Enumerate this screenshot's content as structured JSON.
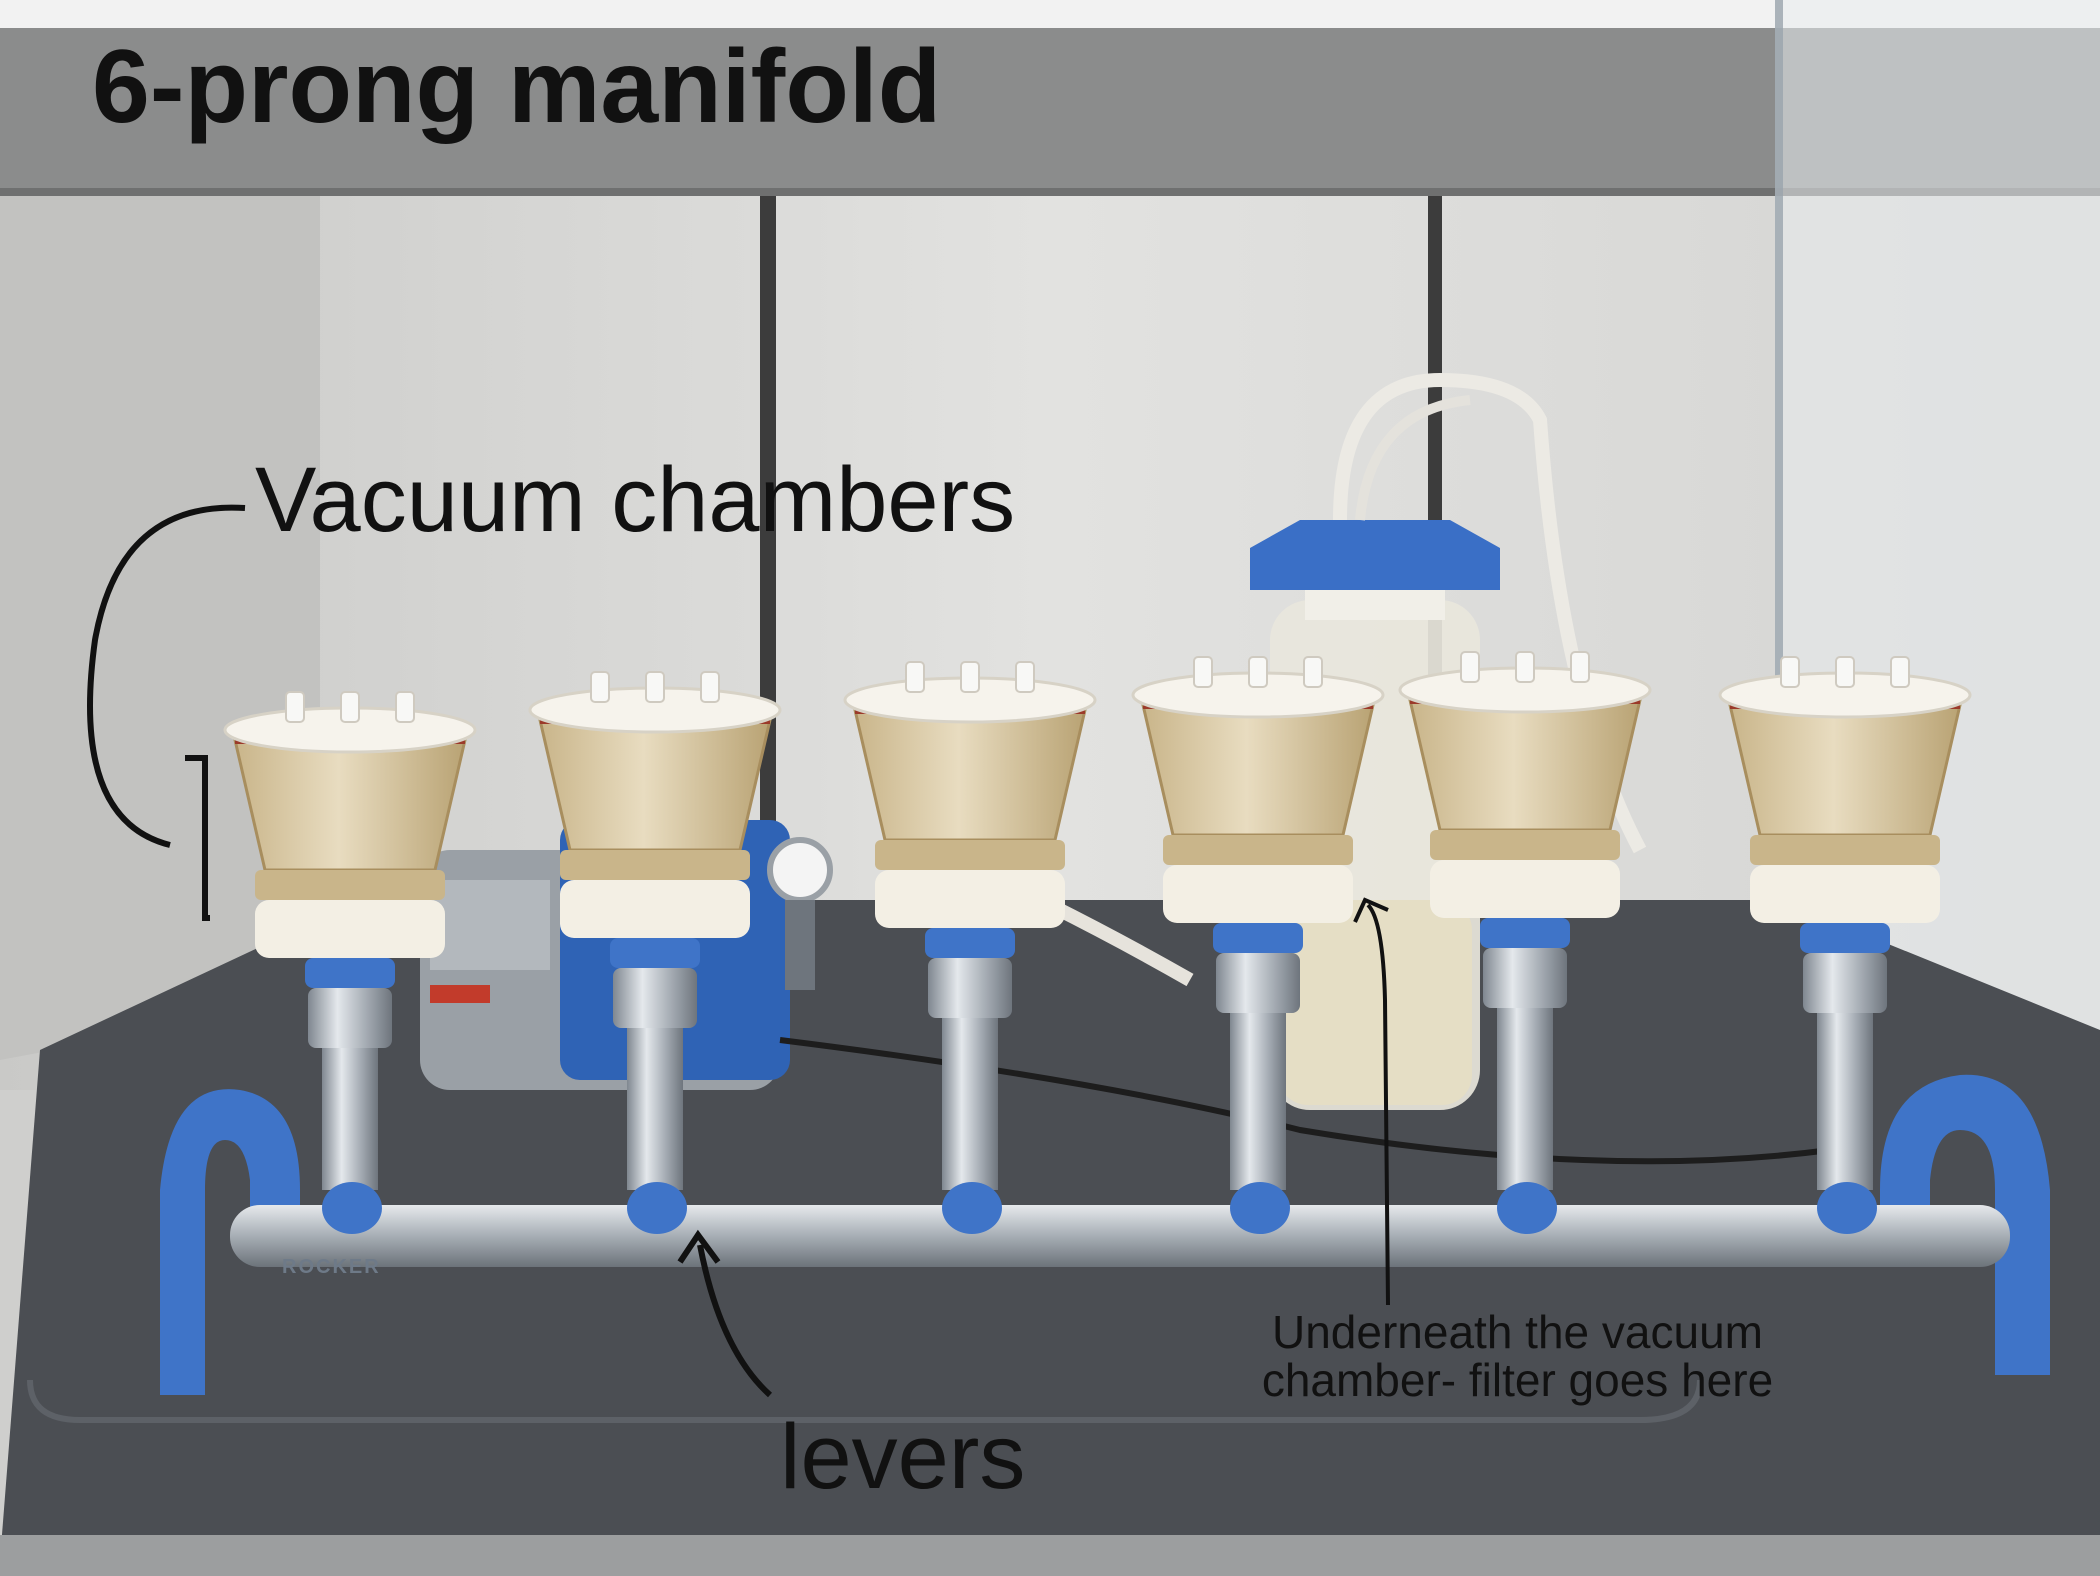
{
  "annotations": {
    "title": "6-prong manifold",
    "vacuum_chambers": "Vacuum chambers",
    "levers": "levers",
    "underneath": "Underneath the vacuum chamber- filter goes here"
  },
  "brand_text": "ROCKER",
  "colors": {
    "manifold_blue": "#3f74c8",
    "chamber_amber": "#d6c49a",
    "lid_white": "#f4f1ea",
    "steel": "#a9b0b8",
    "tray": "#4a4d52",
    "wall": "#dcdcda"
  }
}
